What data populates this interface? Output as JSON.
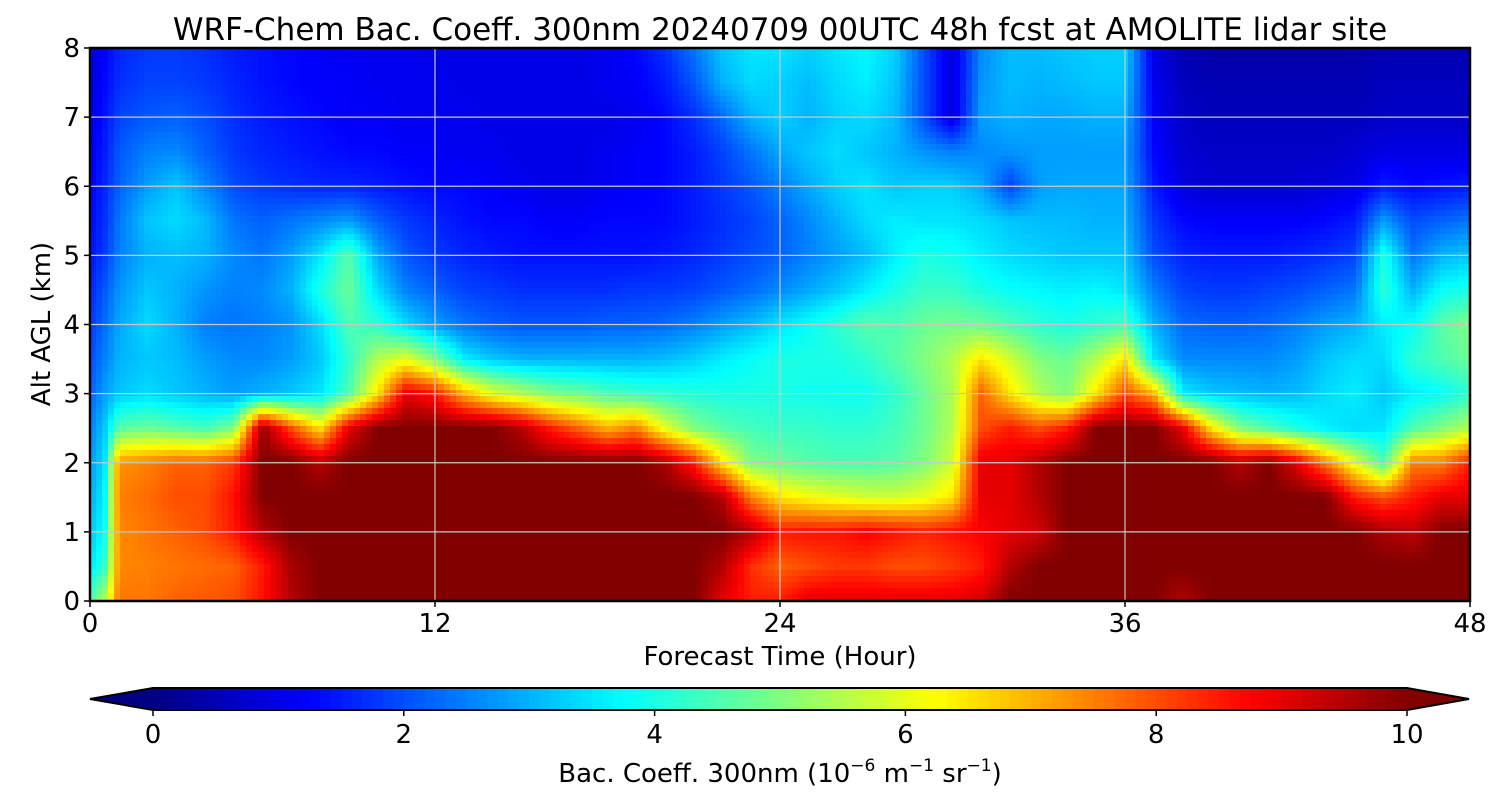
{
  "chart_data": {
    "type": "heatmap",
    "title": "WRF-Chem Bac. Coeff. 300nm  20240709 00UTC 48h fcst at AMOLITE lidar site",
    "xlabel": "Forecast Time (Hour)",
    "ylabel": "Alt AGL (km)",
    "xlim": [
      0,
      48
    ],
    "ylim": [
      0,
      8
    ],
    "x_ticks": [
      0,
      12,
      24,
      36,
      48
    ],
    "y_ticks": [
      0,
      1,
      2,
      3,
      4,
      5,
      6,
      7,
      8
    ],
    "grid": true,
    "colormap": "jet",
    "colorbar": {
      "orientation": "horizontal",
      "placement": "bottom",
      "label_prefix": "Bac. Coeff. 300nm  (10",
      "label_exp1": "−6",
      "label_mid1": " m",
      "label_exp2": "−1",
      "label_mid2": " sr",
      "label_exp3": "−1",
      "label_suffix": ")",
      "range": [
        0,
        10
      ],
      "ticks": [
        0,
        2,
        4,
        6,
        8,
        10
      ],
      "extend": "both"
    },
    "x": [
      0,
      0.5,
      1,
      2,
      3,
      4,
      5,
      6,
      7,
      8,
      9,
      10,
      11,
      12,
      13,
      14,
      15,
      16,
      17,
      18,
      19,
      20,
      21,
      22,
      23,
      24,
      25,
      26,
      27,
      28,
      29,
      30,
      31,
      32,
      33,
      34,
      35,
      36,
      37,
      38,
      39,
      40,
      41,
      42,
      43,
      44,
      45,
      46,
      47,
      48
    ],
    "y": [
      0,
      0.5,
      1,
      1.5,
      2,
      2.5,
      3,
      3.5,
      4,
      4.5,
      5,
      5.5,
      6,
      6.5,
      7,
      7.5,
      8
    ],
    "z_rows": [
      [
        4.5,
        5.5,
        7.6,
        7.6,
        7.8,
        7.9,
        8.0,
        8.6,
        9.5,
        10,
        10,
        10,
        10,
        10,
        10,
        10,
        10,
        10,
        10,
        10,
        10,
        10,
        10,
        9.0,
        8.5,
        8.5,
        9.0,
        9.0,
        9.0,
        9.0,
        9.0,
        9.0,
        9.2,
        10,
        10,
        10,
        10,
        10,
        10,
        9.5,
        10,
        10,
        10,
        10,
        10,
        10,
        10,
        10,
        10,
        10
      ],
      [
        3.5,
        4.2,
        7.4,
        7.5,
        7.6,
        7.7,
        7.8,
        8.5,
        9.6,
        10,
        10,
        10,
        10,
        10,
        10,
        10,
        10,
        10,
        10,
        10,
        10,
        10,
        10,
        9.5,
        8.3,
        7.8,
        8.0,
        8.2,
        8.2,
        8.0,
        8.0,
        8.2,
        8.5,
        9.5,
        10,
        10,
        10,
        10,
        10,
        10,
        10,
        10,
        10,
        10,
        10,
        10,
        10,
        10,
        10,
        10
      ],
      [
        3.2,
        3.8,
        7.4,
        7.6,
        7.8,
        8.0,
        8.5,
        9.5,
        10,
        10,
        10,
        10,
        10,
        10,
        10,
        10,
        10,
        10,
        10,
        10,
        10,
        10,
        10,
        10,
        9.5,
        8.5,
        8.6,
        8.6,
        8.8,
        8.6,
        8.4,
        8.6,
        8.8,
        9.0,
        9.2,
        10,
        10,
        10,
        10,
        10,
        10,
        10,
        10,
        10,
        10,
        10,
        9.6,
        9.4,
        10,
        10
      ],
      [
        3.0,
        3.6,
        7.5,
        7.7,
        8.0,
        8.0,
        8.6,
        10,
        10,
        10,
        10,
        10,
        10,
        10,
        10,
        10,
        10,
        10,
        10,
        10,
        10,
        10,
        10,
        9.5,
        7.5,
        6.5,
        6.2,
        6.0,
        5.8,
        5.8,
        6.0,
        6.5,
        9.0,
        9.0,
        9.5,
        10,
        10,
        10,
        10,
        10,
        10,
        10,
        10,
        10,
        10,
        8.5,
        8.0,
        8.5,
        9.0,
        9.0
      ],
      [
        2.8,
        3.4,
        7.3,
        7.5,
        7.8,
        7.8,
        8.2,
        10,
        10,
        9.5,
        10,
        10,
        10,
        10,
        10,
        10,
        10,
        10,
        10,
        10,
        10,
        9.6,
        8.5,
        6.5,
        5.0,
        4.8,
        4.6,
        4.5,
        4.5,
        4.6,
        5.0,
        5.8,
        9.0,
        9.0,
        9.5,
        10,
        10,
        10,
        10,
        10,
        10,
        9.5,
        10,
        9.0,
        7.5,
        6.0,
        4.5,
        7.5,
        7.5,
        8.5
      ],
      [
        2.5,
        3.2,
        4.6,
        4.8,
        4.6,
        4.4,
        5.0,
        9.8,
        8.0,
        6.5,
        9.0,
        10,
        10,
        10,
        10,
        10,
        9.5,
        8.5,
        7.8,
        7.0,
        7.5,
        6.0,
        5.0,
        4.6,
        4.4,
        4.3,
        4.3,
        4.2,
        4.2,
        4.4,
        4.8,
        5.5,
        8.0,
        8.5,
        8.0,
        8.5,
        10,
        10,
        10,
        9.0,
        6.5,
        5.0,
        4.5,
        4.0,
        3.6,
        3.4,
        3.5,
        4.5,
        5.0,
        5.5
      ],
      [
        2.2,
        2.8,
        3.2,
        3.4,
        3.2,
        3.0,
        2.8,
        3.0,
        3.2,
        3.5,
        4.5,
        6.5,
        9.0,
        8.5,
        7.0,
        6.0,
        5.5,
        5.0,
        4.8,
        4.5,
        4.3,
        4.2,
        4.1,
        4.0,
        4.0,
        4.0,
        3.9,
        3.9,
        3.9,
        4.2,
        4.8,
        5.4,
        7.8,
        6.5,
        5.5,
        5.0,
        6.5,
        8.0,
        7.0,
        3.6,
        3.2,
        3.1,
        3.0,
        3.1,
        3.4,
        3.6,
        3.2,
        3.6,
        3.8,
        4.2
      ],
      [
        2.0,
        2.5,
        3.0,
        3.2,
        3.1,
        2.8,
        2.6,
        2.6,
        2.8,
        3.2,
        4.2,
        5.5,
        6.0,
        5.0,
        3.6,
        3.2,
        3.0,
        3.0,
        3.0,
        3.0,
        3.0,
        3.1,
        3.3,
        3.6,
        3.8,
        4.0,
        4.0,
        4.0,
        4.2,
        4.6,
        5.0,
        5.5,
        6.5,
        5.8,
        5.0,
        4.8,
        5.5,
        6.5,
        3.5,
        2.6,
        2.6,
        2.6,
        2.6,
        2.8,
        3.2,
        3.4,
        3.4,
        4.2,
        4.5,
        4.8
      ],
      [
        1.8,
        2.3,
        2.9,
        3.4,
        3.0,
        2.5,
        2.4,
        2.5,
        2.7,
        3.4,
        4.5,
        4.2,
        3.4,
        2.8,
        2.4,
        2.2,
        2.1,
        2.1,
        2.1,
        2.2,
        2.2,
        2.3,
        2.5,
        2.8,
        3.1,
        3.5,
        3.8,
        4.2,
        4.6,
        4.5,
        4.8,
        4.9,
        4.8,
        4.5,
        4.2,
        4.0,
        4.2,
        4.4,
        3.0,
        2.3,
        2.2,
        2.2,
        2.3,
        2.5,
        2.8,
        3.0,
        3.6,
        3.8,
        4.6,
        5.0
      ],
      [
        1.6,
        2.1,
        2.7,
        3.2,
        3.0,
        2.7,
        2.5,
        2.6,
        3.0,
        4.0,
        4.8,
        3.4,
        2.5,
        2.2,
        1.9,
        1.8,
        1.7,
        1.7,
        1.7,
        1.7,
        1.8,
        1.8,
        1.9,
        2.1,
        2.3,
        2.6,
        2.9,
        3.2,
        3.6,
        4.0,
        4.3,
        4.3,
        4.0,
        3.8,
        3.7,
        3.6,
        3.7,
        3.5,
        2.5,
        1.9,
        1.8,
        1.8,
        1.9,
        2.0,
        2.2,
        2.4,
        4.2,
        3.0,
        3.8,
        4.0
      ],
      [
        1.4,
        1.8,
        2.5,
        3.0,
        3.1,
        3.0,
        2.6,
        2.4,
        2.8,
        3.5,
        4.6,
        2.9,
        2.1,
        1.8,
        1.6,
        1.5,
        1.4,
        1.4,
        1.4,
        1.4,
        1.4,
        1.5,
        1.6,
        1.8,
        2.0,
        2.2,
        2.5,
        2.8,
        3.1,
        3.6,
        4.0,
        3.9,
        3.6,
        3.4,
        3.3,
        3.2,
        3.2,
        3.2,
        2.0,
        1.6,
        1.5,
        1.5,
        1.5,
        1.6,
        1.7,
        1.9,
        4.0,
        2.4,
        3.0,
        3.2
      ],
      [
        1.3,
        1.7,
        2.4,
        3.2,
        3.4,
        3.1,
        2.4,
        2.2,
        2.4,
        2.6,
        2.8,
        2.2,
        1.8,
        1.6,
        1.4,
        1.3,
        1.3,
        1.2,
        1.2,
        1.3,
        1.3,
        1.3,
        1.5,
        1.7,
        1.9,
        2.2,
        2.6,
        3.0,
        3.4,
        3.6,
        3.5,
        3.5,
        3.4,
        3.2,
        3.1,
        3.1,
        3.0,
        3.0,
        1.8,
        1.3,
        1.2,
        1.2,
        1.2,
        1.2,
        1.3,
        1.5,
        2.8,
        2.0,
        2.2,
        2.4
      ],
      [
        1.2,
        1.6,
        2.2,
        2.8,
        3.2,
        2.6,
        2.0,
        1.8,
        1.7,
        1.6,
        1.6,
        1.5,
        1.4,
        1.3,
        1.3,
        1.2,
        1.1,
        1.0,
        1.0,
        1.1,
        1.2,
        1.3,
        1.5,
        1.8,
        2.1,
        2.5,
        2.9,
        3.3,
        3.5,
        3.2,
        3.3,
        3.3,
        2.9,
        1.9,
        2.8,
        2.9,
        2.9,
        2.9,
        1.5,
        0.9,
        0.8,
        0.8,
        0.8,
        0.8,
        0.9,
        1.0,
        1.5,
        1.3,
        1.4,
        1.5
      ],
      [
        1.1,
        1.5,
        2.1,
        2.5,
        2.6,
        2.2,
        1.8,
        1.6,
        1.5,
        1.4,
        1.3,
        1.3,
        1.2,
        1.2,
        1.1,
        1.1,
        1.0,
        1.0,
        1.0,
        1.1,
        1.2,
        1.3,
        1.5,
        1.9,
        2.4,
        2.9,
        3.2,
        3.4,
        3.2,
        3.0,
        2.7,
        2.5,
        2.6,
        2.7,
        2.8,
        2.8,
        2.8,
        2.8,
        1.3,
        0.8,
        0.7,
        0.7,
        0.7,
        0.7,
        0.7,
        0.8,
        1.0,
        1.0,
        1.0,
        1.0
      ],
      [
        1.0,
        1.4,
        1.9,
        2.1,
        2.2,
        2.0,
        1.7,
        1.5,
        1.4,
        1.3,
        1.2,
        1.2,
        1.1,
        1.1,
        1.1,
        1.0,
        1.0,
        1.0,
        1.0,
        1.0,
        1.1,
        1.3,
        1.7,
        2.3,
        3.0,
        3.3,
        3.0,
        3.3,
        3.4,
        3.1,
        2.0,
        0.9,
        2.8,
        3.0,
        2.9,
        2.9,
        3.0,
        3.0,
        1.2,
        0.7,
        0.6,
        0.6,
        0.6,
        0.6,
        0.6,
        0.6,
        0.7,
        0.7,
        0.7,
        0.7
      ],
      [
        0.9,
        1.3,
        1.7,
        1.9,
        1.9,
        1.8,
        1.6,
        1.4,
        1.3,
        1.2,
        1.2,
        1.1,
        1.1,
        1.1,
        1.0,
        1.0,
        1.0,
        1.0,
        1.0,
        1.1,
        1.2,
        1.5,
        2.1,
        3.0,
        3.4,
        3.3,
        3.1,
        3.4,
        3.6,
        3.2,
        2.0,
        0.9,
        2.7,
        3.1,
        3.0,
        3.1,
        3.2,
        3.2,
        1.1,
        0.6,
        0.5,
        0.5,
        0.5,
        0.5,
        0.5,
        0.5,
        0.6,
        0.6,
        0.6,
        0.6
      ],
      [
        0.9,
        1.2,
        1.6,
        1.8,
        1.8,
        1.7,
        1.5,
        1.4,
        1.3,
        1.2,
        1.1,
        1.1,
        1.1,
        1.0,
        1.0,
        1.0,
        1.0,
        1.0,
        1.0,
        1.1,
        1.3,
        1.7,
        2.4,
        3.2,
        3.5,
        3.5,
        3.3,
        3.5,
        3.7,
        3.3,
        2.0,
        0.9,
        2.6,
        3.1,
        3.1,
        3.2,
        3.3,
        3.3,
        1.0,
        0.5,
        0.4,
        0.4,
        0.4,
        0.4,
        0.4,
        0.4,
        0.5,
        0.5,
        0.5,
        0.5
      ]
    ]
  }
}
